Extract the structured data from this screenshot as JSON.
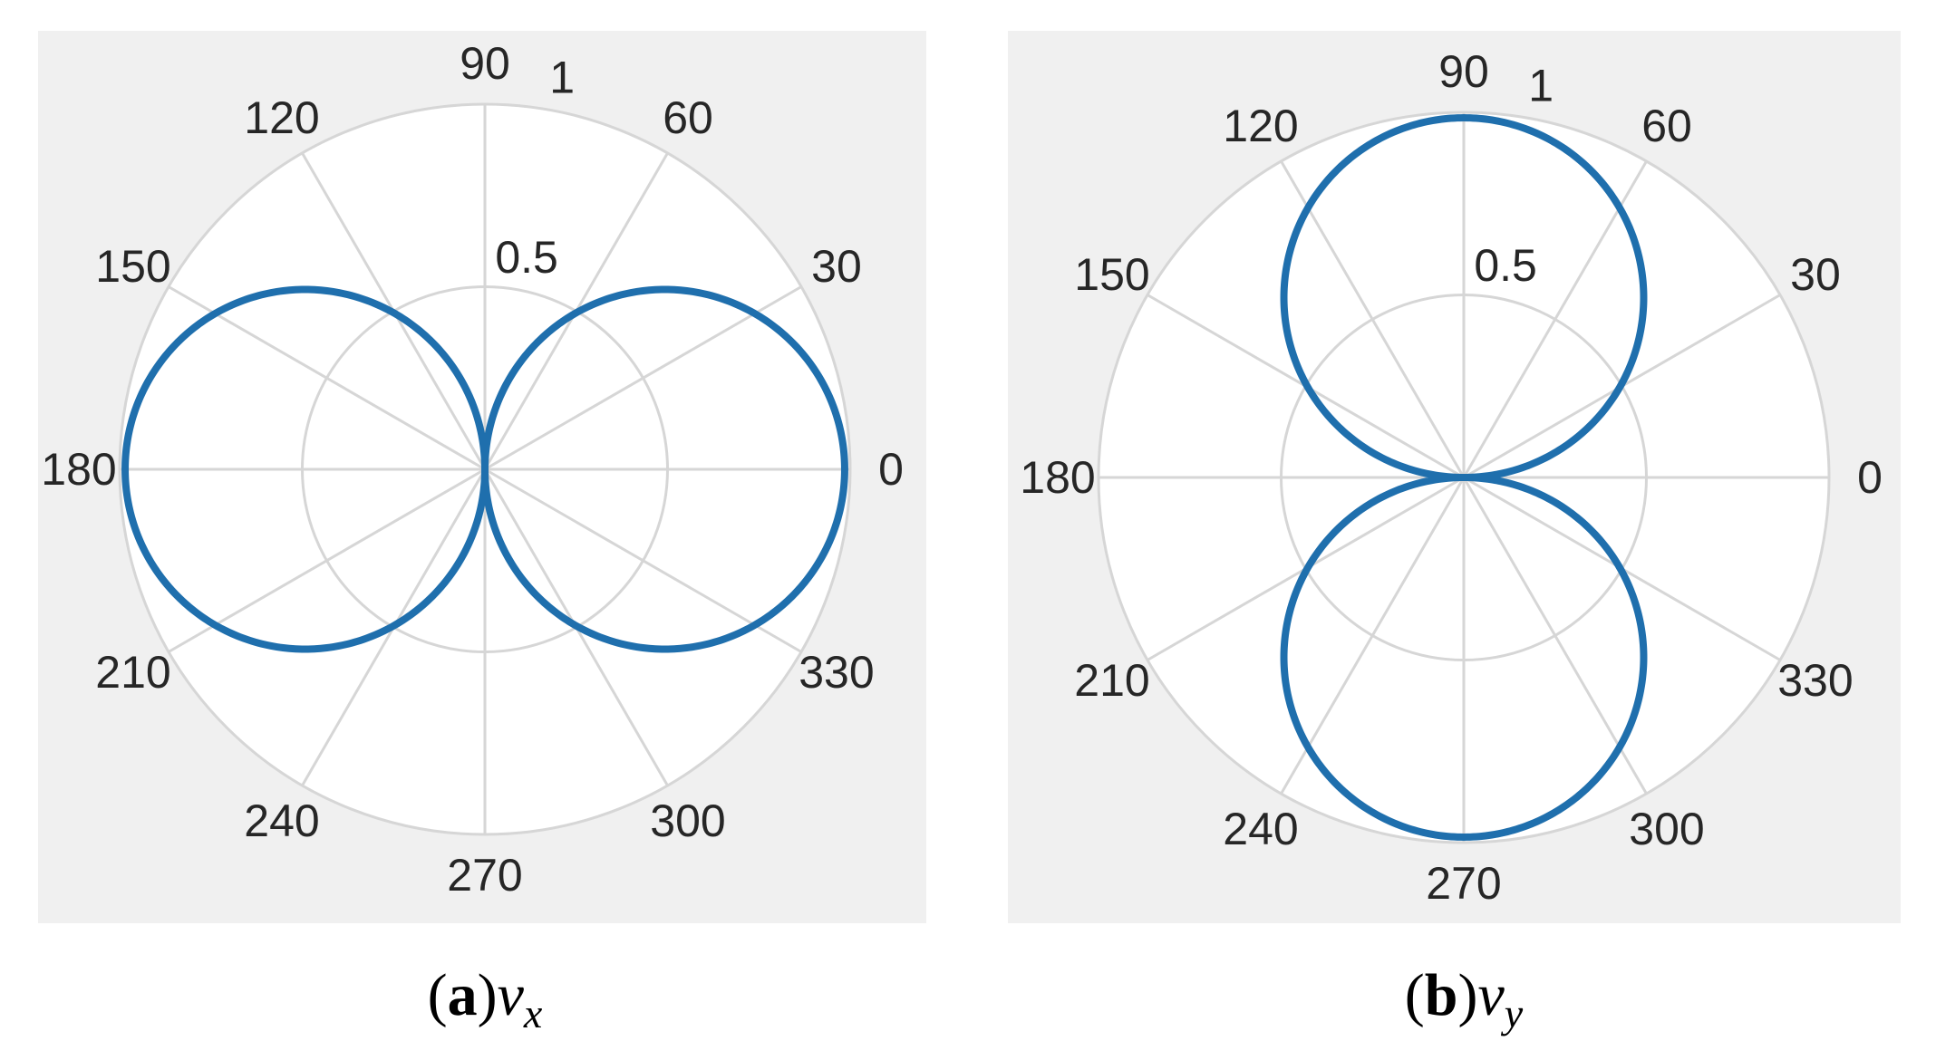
{
  "chart_data": [
    {
      "type": "polar",
      "caption": {
        "letter": "a",
        "var": "v",
        "sub": "x"
      },
      "theta_ticks": [
        "0",
        "30",
        "60",
        "90",
        "120",
        "150",
        "180",
        "210",
        "240",
        "270",
        "300",
        "330"
      ],
      "r_ticks": [
        "0.5",
        "1"
      ],
      "rlim": [
        0,
        1
      ],
      "r_tick_angle_deg": 80,
      "grid": true,
      "series": [
        {
          "function": "abs(cos(theta))",
          "points": [
            [
              0,
              1
            ],
            [
              30,
              0.866
            ],
            [
              60,
              0.5
            ],
            [
              90,
              0
            ],
            [
              120,
              0.5
            ],
            [
              150,
              0.866
            ],
            [
              180,
              1
            ],
            [
              210,
              0.866
            ],
            [
              240,
              0.5
            ],
            [
              270,
              0
            ],
            [
              300,
              0.5
            ],
            [
              330,
              0.866
            ]
          ]
        }
      ]
    },
    {
      "type": "polar",
      "caption": {
        "letter": "b",
        "var": "v",
        "sub": "y"
      },
      "theta_ticks": [
        "0",
        "30",
        "60",
        "90",
        "120",
        "150",
        "180",
        "210",
        "240",
        "270",
        "300",
        "330"
      ],
      "r_ticks": [
        "0.5",
        "1"
      ],
      "rlim": [
        0,
        1
      ],
      "r_tick_angle_deg": 80,
      "grid": true,
      "series": [
        {
          "function": "abs(sin(theta))",
          "points": [
            [
              0,
              0
            ],
            [
              30,
              0.5
            ],
            [
              60,
              0.866
            ],
            [
              90,
              1
            ],
            [
              120,
              0.866
            ],
            [
              150,
              0.5
            ],
            [
              180,
              0
            ],
            [
              210,
              0.5
            ],
            [
              240,
              0.866
            ],
            [
              270,
              1
            ],
            [
              300,
              0.866
            ],
            [
              330,
              0.5
            ]
          ]
        }
      ]
    }
  ],
  "colors": {
    "line": "#1f6fad",
    "grid": "#d6d6d6",
    "panel_bg": "#f0f0f0",
    "plot_bg": "#ffffff"
  }
}
